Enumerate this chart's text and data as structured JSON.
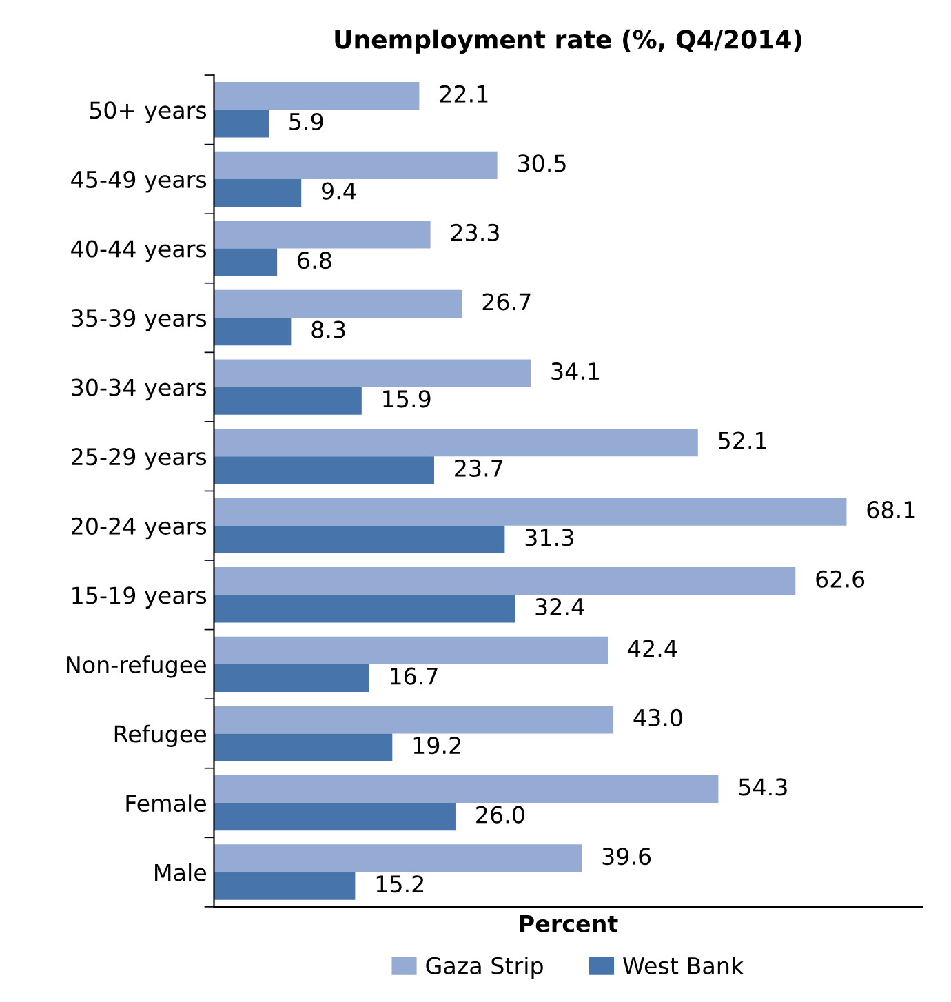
{
  "chart_data": {
    "type": "bar",
    "orientation": "horizontal",
    "title": "Unemployment rate (%, Q4/2014)",
    "xlabel": "Percent",
    "categories": [
      "50+ years",
      "45-49 years",
      "40-44 years",
      "35-39 years",
      "30-34 years",
      "25-29 years",
      "20-24 years",
      "15-19 years",
      "Non-refugee",
      "Refugee",
      "Female",
      "Male"
    ],
    "series": [
      {
        "name": "Gaza Strip",
        "color": "#95abd4",
        "values": [
          22.1,
          30.5,
          23.3,
          26.7,
          34.1,
          52.1,
          68.1,
          62.6,
          42.4,
          43.0,
          54.3,
          39.6
        ],
        "value_labels": [
          "22.1",
          "30.5",
          "23.3",
          "26.7",
          "34.1",
          "52.1",
          "68.1",
          "62.6",
          "42.4",
          "43.0",
          "54.3",
          "39.6"
        ]
      },
      {
        "name": "West Bank",
        "color": "#4674ab",
        "values": [
          5.9,
          9.4,
          6.8,
          8.3,
          15.9,
          23.7,
          31.3,
          32.4,
          16.7,
          19.2,
          26.0,
          15.2
        ],
        "value_labels": [
          "5.9",
          "9.4",
          "6.8",
          "8.3",
          "15.9",
          "23.7",
          "31.3",
          "32.4",
          "16.7",
          "19.2",
          "26.0",
          "15.2"
        ]
      }
    ],
    "legend": "bottom",
    "grid": false,
    "tick_labels": "y"
  }
}
